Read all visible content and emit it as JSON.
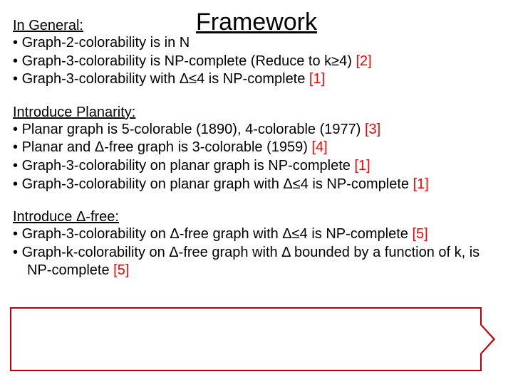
{
  "title": "Framework",
  "sections": [
    {
      "heading": "In General:",
      "items": [
        {
          "text": "Graph-2-colorability is in N",
          "ref": ""
        },
        {
          "text": "Graph-3-colorability is NP-complete (Reduce to k≥4) ",
          "ref": "[2]"
        },
        {
          "text": "Graph-3-colorability with Δ≤4 is NP-complete ",
          "ref": "[1]"
        }
      ]
    },
    {
      "heading": "Introduce Planarity:",
      "items": [
        {
          "text": "Planar graph is 5-colorable (1890), 4-colorable (1977) ",
          "ref": "[3]"
        },
        {
          "text": "Planar and Δ-free graph is 3-colorable (1959) ",
          "ref": "[4]"
        },
        {
          "text": "Graph-3-colorability on planar graph is NP-complete ",
          "ref": "[1]"
        },
        {
          "text": "Graph-3-colorability on planar graph with Δ≤4 is NP-complete ",
          "ref": "[1]"
        }
      ]
    },
    {
      "heading": "Introduce Δ-free:",
      "items": [
        {
          "text": "Graph-3-colorability on Δ-free graph with Δ≤4 is NP-complete ",
          "ref": "[5]"
        },
        {
          "text": "Graph-k-colorability on Δ-free graph with Δ bounded by a function of k, is NP-complete ",
          "ref": "[5]"
        }
      ]
    }
  ],
  "style": {
    "font_family": "Comic Sans MS",
    "title_fontsize": 34,
    "body_fontsize": 20,
    "ref_color": "#ff0000",
    "text_color": "#000000",
    "background_color": "#ffffff",
    "callout_border_color": "#c00000"
  }
}
